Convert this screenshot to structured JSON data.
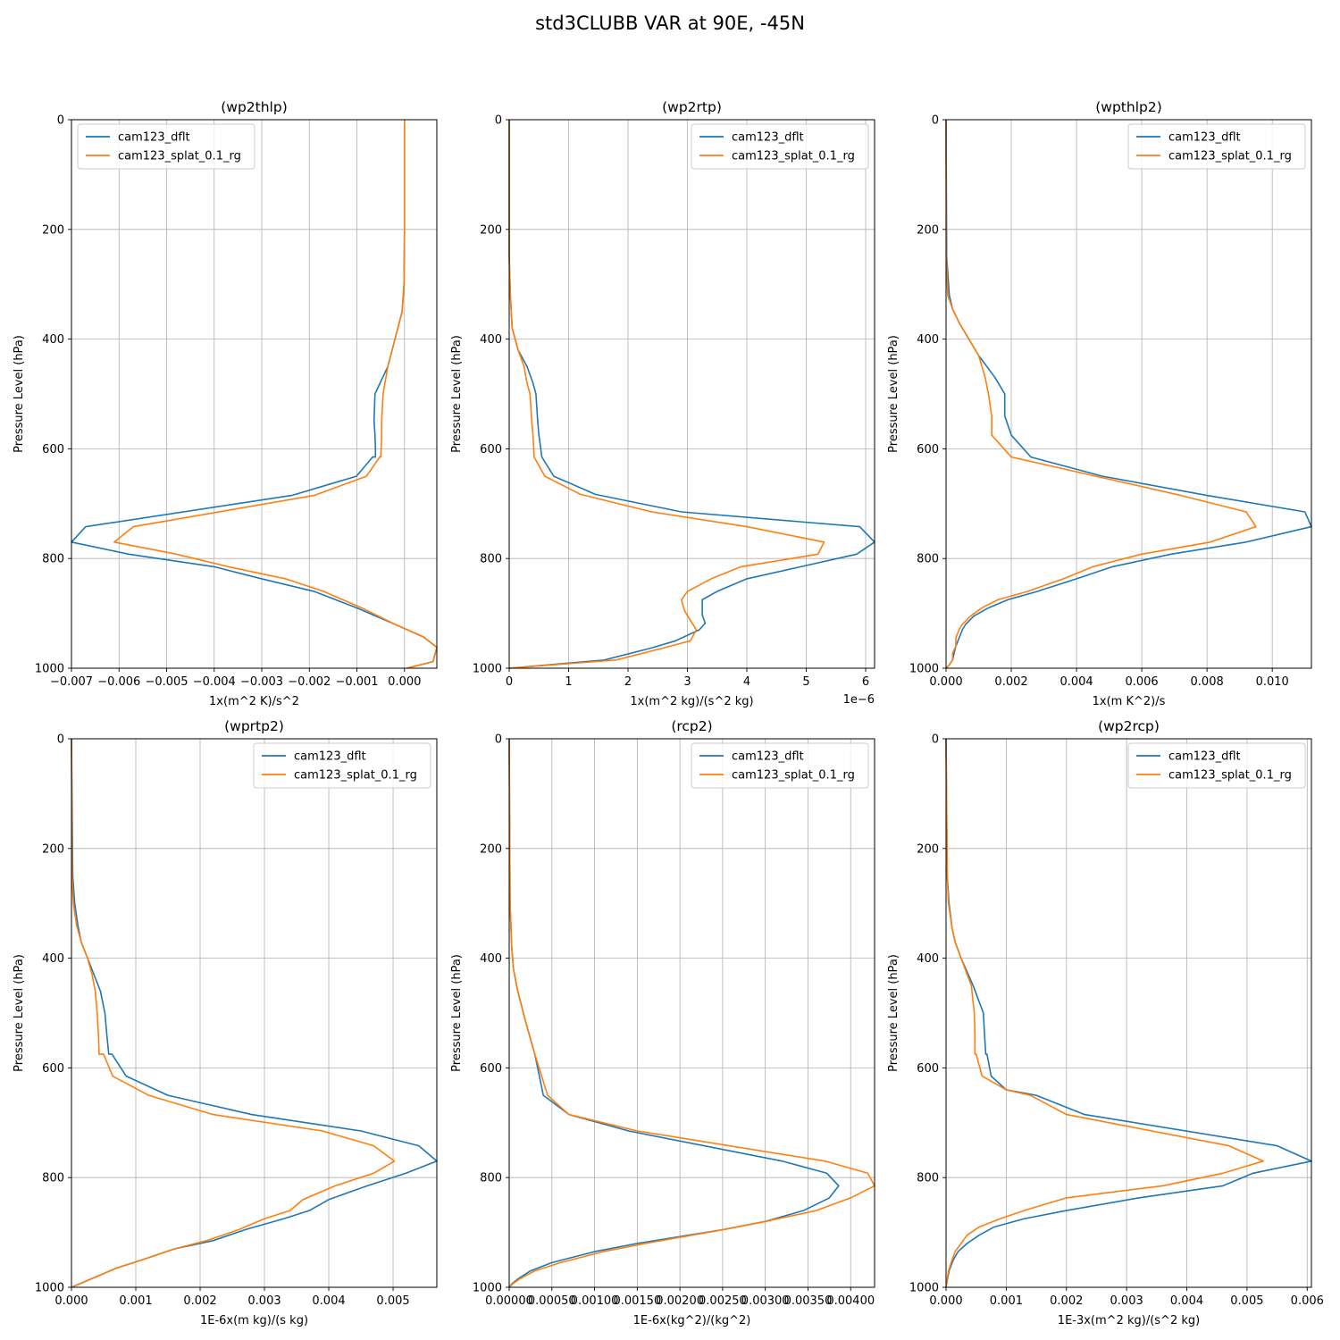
{
  "figure": {
    "title": "std3CLUBB VAR at 90E, -45N",
    "ylabel": "Pressure Level (hPa)"
  },
  "colors": {
    "cam123_dflt": "#1f77b4",
    "cam123_splat_0.1_rg": "#ff7f0e",
    "grid": "#b0b0b0"
  },
  "chart_data": [
    {
      "type": "line",
      "title": "(wp2thlp)",
      "xlabel": "1x(m^2 K)/s^2",
      "ylabel": "Pressure Level (hPa)",
      "xlim": [
        -0.007,
        0.00068
      ],
      "ylim": [
        1000,
        0
      ],
      "x_ticks": [
        -0.007,
        -0.006,
        -0.005,
        -0.004,
        -0.003,
        -0.002,
        -0.001,
        0.0
      ],
      "x_tick_labels": [
        "−0.007",
        "−0.006",
        "−0.005",
        "−0.004",
        "−0.003",
        "−0.002",
        "−0.001",
        "0.000"
      ],
      "y_ticks": [
        0,
        200,
        400,
        600,
        800,
        1000
      ],
      "offset_text": "",
      "legend": "top-left",
      "grid": true,
      "series": [
        {
          "name": "cam123_dflt",
          "color": "#1f77b4",
          "x": [
            0.0,
            0.0,
            0.0,
            -1e-05,
            -5e-05,
            -0.00035,
            -0.00062,
            -0.00064,
            -0.00062,
            -0.00061,
            -0.00061,
            -0.00067,
            -0.00101,
            -0.00237,
            -0.0067,
            -0.007,
            -0.0058,
            -0.004,
            -0.003,
            -0.0019,
            -0.001,
            -0.0002,
            0.0004,
            0.00068,
            0.0006,
            5e-05
          ],
          "y": [
            0,
            100,
            200,
            300,
            350,
            450,
            500,
            550,
            575,
            600,
            615,
            615,
            650,
            685,
            742,
            770,
            792,
            815,
            837,
            860,
            890,
            920,
            943,
            962,
            988,
            1000
          ]
        },
        {
          "name": "cam123_splat_0.1_rg",
          "color": "#ff7f0e",
          "x": [
            0.0,
            0.0,
            0.0,
            -1e-05,
            -5e-05,
            -0.00035,
            -0.00045,
            -0.00048,
            -0.00048,
            -0.00049,
            -0.0005,
            -0.00052,
            -0.0008,
            -0.0019,
            -0.0057,
            -0.0061,
            -0.0048,
            -0.0037,
            -0.0025,
            -0.0017,
            -0.0009,
            -0.0002,
            0.0004,
            0.00068,
            0.0006,
            5e-05
          ],
          "y": [
            0,
            100,
            200,
            300,
            350,
            450,
            500,
            550,
            575,
            600,
            615,
            615,
            650,
            685,
            742,
            770,
            792,
            815,
            837,
            860,
            890,
            920,
            943,
            962,
            988,
            1000
          ]
        }
      ]
    },
    {
      "type": "line",
      "title": "(wp2rtp)",
      "xlabel": "1x(m^2 kg)/(s^2 kg)",
      "ylabel": "Pressure Level (hPa)",
      "xlim": [
        0,
        6.15
      ],
      "ylim": [
        1000,
        0
      ],
      "x_ticks": [
        0,
        1,
        2,
        3,
        4,
        5,
        6
      ],
      "x_tick_labels": [
        "0",
        "1",
        "2",
        "3",
        "4",
        "5",
        "6"
      ],
      "y_ticks": [
        0,
        200,
        400,
        600,
        800,
        1000
      ],
      "offset_text": "1e−6",
      "legend": "top-right",
      "grid": true,
      "series": [
        {
          "name": "cam123_dflt",
          "color": "#1f77b4",
          "x": [
            0,
            0,
            0.02,
            0.05,
            0.15,
            0.3,
            0.4,
            0.45,
            0.48,
            0.5,
            0.55,
            0.75,
            1.45,
            2.9,
            5.9,
            6.15,
            5.85,
            4.0,
            3.5,
            3.25,
            3.25,
            3.3,
            3.2,
            2.8,
            2.4,
            1.6,
            0.0
          ],
          "y": [
            0,
            250,
            320,
            380,
            420,
            450,
            480,
            500,
            550,
            575,
            615,
            650,
            683,
            715,
            742,
            770,
            792,
            837,
            860,
            875,
            903,
            918,
            930,
            950,
            963,
            985,
            1000
          ]
        },
        {
          "name": "cam123_splat_0.1_rg",
          "color": "#ff7f0e",
          "x": [
            0,
            0,
            0.02,
            0.05,
            0.15,
            0.25,
            0.3,
            0.35,
            0.38,
            0.4,
            0.42,
            0.6,
            1.2,
            2.4,
            4.0,
            5.3,
            5.2,
            3.9,
            3.4,
            3.0,
            2.9,
            2.95,
            3.15,
            3.05,
            2.6,
            1.8,
            0.0
          ],
          "y": [
            0,
            250,
            320,
            380,
            420,
            450,
            480,
            500,
            550,
            575,
            615,
            650,
            683,
            715,
            742,
            770,
            792,
            815,
            837,
            860,
            875,
            895,
            930,
            950,
            963,
            985,
            1000
          ]
        }
      ]
    },
    {
      "type": "line",
      "title": "(wpthlp2)",
      "xlabel": "1x(m K^2)/s",
      "ylabel": "Pressure Level (hPa)",
      "xlim": [
        0,
        0.0112
      ],
      "ylim": [
        1000,
        0
      ],
      "x_ticks": [
        0.0,
        0.002,
        0.004,
        0.006,
        0.008,
        0.01
      ],
      "x_tick_labels": [
        "0.000",
        "0.002",
        "0.004",
        "0.006",
        "0.008",
        "0.010"
      ],
      "y_ticks": [
        0,
        200,
        400,
        600,
        800,
        1000
      ],
      "offset_text": "",
      "legend": "top-right",
      "grid": true,
      "series": [
        {
          "name": "cam123_dflt",
          "color": "#1f77b4",
          "x": [
            0,
            2e-05,
            0.0001,
            0.0002,
            0.0004,
            0.001,
            0.0015,
            0.0018,
            0.0018,
            0.002,
            0.0026,
            0.0048,
            0.008,
            0.011,
            0.0112,
            0.0092,
            0.0069,
            0.0051,
            0.004,
            0.0028,
            0.0019,
            0.0013,
            0.00085,
            0.0006,
            0.0005,
            0.0004,
            0.0003,
            0.00025,
            0.0002,
            0.0001,
            0.0
          ],
          "y": [
            0,
            250,
            320,
            345,
            370,
            430,
            470,
            500,
            540,
            575,
            615,
            650,
            685,
            715,
            742,
            770,
            792,
            815,
            837,
            860,
            875,
            890,
            905,
            920,
            930,
            945,
            960,
            972,
            985,
            994,
            1000
          ]
        },
        {
          "name": "cam123_splat_0.1_rg",
          "color": "#ff7f0e",
          "x": [
            0,
            1e-05,
            5e-05,
            0.0002,
            0.0004,
            0.001,
            0.0012,
            0.0013,
            0.0014,
            0.0014,
            0.002,
            0.0046,
            0.0072,
            0.0092,
            0.0095,
            0.0081,
            0.006,
            0.0045,
            0.0036,
            0.0025,
            0.0016,
            0.0011,
            0.00075,
            0.0005,
            0.0004,
            0.0003,
            0.0003,
            0.0002,
            0.0002,
            0.0001,
            0.0
          ],
          "y": [
            0,
            250,
            320,
            345,
            370,
            430,
            470,
            500,
            540,
            575,
            615,
            650,
            685,
            715,
            742,
            770,
            792,
            815,
            837,
            860,
            875,
            890,
            905,
            920,
            930,
            945,
            960,
            972,
            985,
            994,
            1000
          ]
        }
      ]
    },
    {
      "type": "line",
      "title": "(wprtp2)",
      "xlabel": "1E-6x(m kg)/(s kg)",
      "ylabel": "Pressure Level (hPa)",
      "xlim": [
        0,
        0.00568
      ],
      "ylim": [
        1000,
        0
      ],
      "x_ticks": [
        0.0,
        0.001,
        0.002,
        0.003,
        0.004,
        0.005
      ],
      "x_tick_labels": [
        "0.000",
        "0.001",
        "0.002",
        "0.003",
        "0.004",
        "0.005"
      ],
      "y_ticks": [
        0,
        200,
        400,
        600,
        800,
        1000
      ],
      "offset_text": "",
      "legend": "top-right",
      "grid": true,
      "series": [
        {
          "name": "cam123_dflt",
          "color": "#1f77b4",
          "x": [
            0,
            2e-05,
            5e-05,
            0.0001,
            0.00015,
            0.00025,
            0.00035,
            0.00045,
            0.00052,
            0.00055,
            0.00058,
            0.00063,
            0.00085,
            0.0015,
            0.0028,
            0.0045,
            0.0054,
            0.00568,
            0.0052,
            0.0046,
            0.004,
            0.0037,
            0.0033,
            0.0027,
            0.0022,
            0.0016,
            0.0011,
            0.0007,
            0.0004,
            0.0002,
            0.0
          ],
          "y": [
            0,
            250,
            300,
            340,
            370,
            400,
            430,
            460,
            500,
            540,
            575,
            575,
            615,
            650,
            685,
            715,
            742,
            770,
            792,
            815,
            840,
            860,
            875,
            895,
            915,
            930,
            950,
            965,
            980,
            990,
            1000
          ]
        },
        {
          "name": "cam123_splat_0.1_rg",
          "color": "#ff7f0e",
          "x": [
            0,
            1e-05,
            3e-05,
            8e-05,
            0.00015,
            0.00025,
            0.00032,
            0.00037,
            0.0004,
            0.00042,
            0.00043,
            0.0005,
            0.00064,
            0.0012,
            0.0022,
            0.0039,
            0.0047,
            0.00502,
            0.0047,
            0.0041,
            0.0036,
            0.0034,
            0.003,
            0.0026,
            0.0021,
            0.0016,
            0.0011,
            0.0007,
            0.0004,
            0.0002,
            0.0
          ],
          "y": [
            0,
            250,
            300,
            340,
            370,
            400,
            430,
            460,
            500,
            540,
            575,
            575,
            615,
            650,
            685,
            715,
            742,
            770,
            792,
            815,
            840,
            860,
            875,
            895,
            915,
            930,
            950,
            965,
            980,
            990,
            1000
          ]
        }
      ]
    },
    {
      "type": "line",
      "title": "(rcp2)",
      "xlabel": "1E-6x(kg^2)/(kg^2)",
      "ylabel": "Pressure Level (hPa)",
      "xlim": [
        0,
        0.00428
      ],
      "ylim": [
        1000,
        0
      ],
      "x_ticks": [
        0.0,
        0.0005,
        0.001,
        0.0015,
        0.002,
        0.0025,
        0.003,
        0.0035,
        0.004
      ],
      "x_tick_labels": [
        "0.00000",
        "0.00050",
        "0.00100",
        "0.00150",
        "0.00200",
        "0.00250",
        "0.00300",
        "0.00350",
        "0.00400"
      ],
      "y_ticks": [
        0,
        200,
        400,
        600,
        800,
        1000
      ],
      "offset_text": "",
      "legend": "top-right",
      "grid": true,
      "series": [
        {
          "name": "cam123_dflt",
          "color": "#1f77b4",
          "x": [
            0,
            1e-05,
            3e-05,
            5e-05,
            0.0001,
            0.0002,
            0.0003,
            0.0004,
            0.0007,
            0.0014,
            0.0032,
            0.00372,
            0.00386,
            0.00375,
            0.00345,
            0.003,
            0.0025,
            0.0015,
            0.001,
            0.0005,
            0.00025,
            0.0001,
            3e-05,
            0.0
          ],
          "y": [
            0,
            300,
            380,
            420,
            460,
            520,
            575,
            650,
            685,
            715,
            770,
            792,
            815,
            837,
            860,
            880,
            895,
            920,
            935,
            955,
            970,
            985,
            994,
            1000
          ]
        },
        {
          "name": "cam123_splat_0.1_rg",
          "color": "#ff7f0e",
          "x": [
            0,
            1e-05,
            3e-05,
            5e-05,
            0.0001,
            0.0002,
            0.0003,
            0.00045,
            0.0007,
            0.0015,
            0.0037,
            0.0042,
            0.00428,
            0.004,
            0.0036,
            0.003,
            0.0025,
            0.0016,
            0.0011,
            0.0006,
            0.0003,
            0.00012,
            4e-05,
            0.0
          ],
          "y": [
            0,
            300,
            380,
            420,
            460,
            520,
            575,
            650,
            685,
            715,
            770,
            792,
            815,
            837,
            860,
            880,
            895,
            920,
            935,
            955,
            970,
            985,
            994,
            1000
          ]
        }
      ]
    },
    {
      "type": "line",
      "title": "(wp2rcp)",
      "xlabel": "1E-3x(m^2 kg)/(s^2 kg)",
      "ylabel": "Pressure Level (hPa)",
      "xlim": [
        0,
        0.00607
      ],
      "ylim": [
        1000,
        0
      ],
      "x_ticks": [
        0.0,
        0.001,
        0.002,
        0.003,
        0.004,
        0.005,
        0.006
      ],
      "x_tick_labels": [
        "0.000",
        "0.001",
        "0.002",
        "0.003",
        "0.004",
        "0.005",
        "0.006"
      ],
      "y_ticks": [
        0,
        200,
        400,
        600,
        800,
        1000
      ],
      "offset_text": "",
      "legend": "top-right",
      "grid": true,
      "series": [
        {
          "name": "cam123_dflt",
          "color": "#1f77b4",
          "x": [
            0,
            2e-05,
            5e-05,
            0.0001,
            0.00015,
            0.00025,
            0.00045,
            0.00062,
            0.00064,
            0.00066,
            0.00068,
            0.00075,
            0.001,
            0.0015,
            0.0023,
            0.0055,
            0.00607,
            0.0051,
            0.0046,
            0.0032,
            0.002,
            0.0013,
            0.0008,
            0.00055,
            0.00035,
            0.0002,
            0.00012,
            5e-05,
            0.0
          ],
          "y": [
            0,
            250,
            300,
            345,
            370,
            400,
            450,
            500,
            540,
            575,
            575,
            615,
            640,
            650,
            685,
            742,
            770,
            792,
            815,
            837,
            860,
            875,
            890,
            905,
            920,
            935,
            950,
            970,
            1000
          ]
        },
        {
          "name": "cam123_splat_0.1_rg",
          "color": "#ff7f0e",
          "x": [
            0,
            2e-05,
            4e-05,
            0.0001,
            0.00015,
            0.00025,
            0.00042,
            0.00047,
            0.00048,
            0.00048,
            0.0005,
            0.0006,
            0.001,
            0.0014,
            0.002,
            0.0047,
            0.00527,
            0.0046,
            0.0036,
            0.002,
            0.0013,
            0.0009,
            0.00055,
            0.00035,
            0.00025,
            0.00015,
            0.0001,
            4e-05,
            0.0
          ],
          "y": [
            0,
            250,
            300,
            345,
            370,
            400,
            450,
            500,
            540,
            575,
            575,
            615,
            640,
            650,
            685,
            742,
            770,
            792,
            815,
            837,
            860,
            875,
            890,
            905,
            920,
            935,
            950,
            970,
            1000
          ]
        }
      ]
    }
  ]
}
